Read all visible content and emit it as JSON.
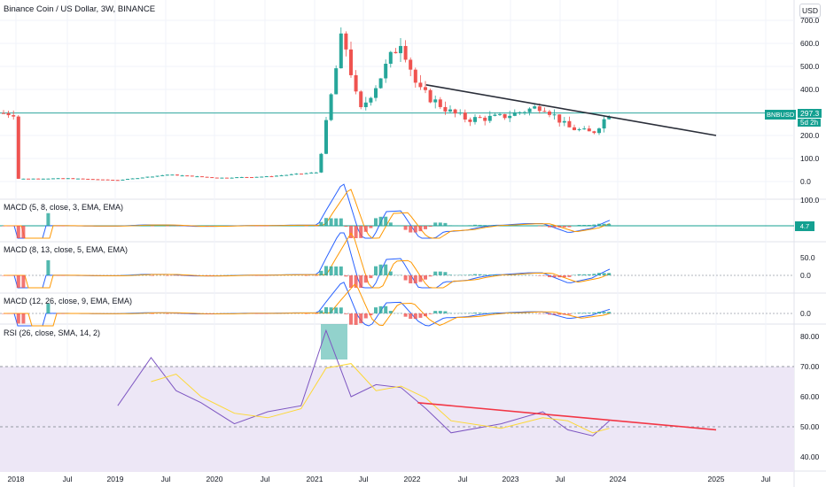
{
  "header": {
    "title": "Binance Coin / US Dollar, 3W, BINANCE",
    "currency": "USD"
  },
  "price_tag": {
    "symbol": "BNBUSD",
    "price": "297.3",
    "countdown": "5d 2h"
  },
  "macd_tag": {
    "value": "4.7"
  },
  "colors": {
    "up": "#26a69a",
    "down": "#ef5350",
    "trendline": "#2a2e39",
    "rsi_trend": "#f23645",
    "macd": "#2962ff",
    "signal": "#ff9800",
    "rsi": "#7e57c2",
    "rsi_ma": "#fdd835",
    "rsi_band": "#ede7f6"
  },
  "time_axis": [
    "2018",
    "Jul",
    "2019",
    "Jul",
    "2020",
    "Jul",
    "2021",
    "Jul",
    "2022",
    "Jul",
    "2023",
    "Jul",
    "2024",
    "2025",
    "Jul"
  ],
  "panes": [
    {
      "title": "",
      "ticks": [
        "700.0",
        "600.0",
        "500.0",
        "400.0",
        "300.0",
        "200.0",
        "100.0",
        "0.0"
      ]
    },
    {
      "title": "MACD (5, 8, close, 3, EMA, EMA)",
      "ticks": [
        "100.0"
      ]
    },
    {
      "title": "MACD (8, 13, close, 5, EMA, EMA)",
      "ticks": [
        "50.0",
        "0.0"
      ]
    },
    {
      "title": "MACD (12, 26, close, 9, EMA, EMA)",
      "ticks": [
        "0.0"
      ]
    },
    {
      "title": "RSI (26, close, SMA, 14, 2)",
      "ticks": [
        "80.00",
        "70.00",
        "60.00",
        "50.00",
        "40.00"
      ]
    }
  ],
  "chart_data": [
    {
      "type": "candlestick",
      "title": "Binance Coin / US Dollar, 3W, BINANCE",
      "ylim": [
        0,
        700
      ],
      "close_approx": [
        [
          "2018-01",
          12
        ],
        [
          "2018-07",
          14
        ],
        [
          "2019-01",
          6
        ],
        [
          "2019-07",
          30
        ],
        [
          "2020-01",
          16
        ],
        [
          "2020-07",
          22
        ],
        [
          "2021-01",
          40
        ],
        [
          "2021-02",
          250
        ],
        [
          "2021-04",
          650
        ],
        [
          "2021-06",
          300
        ],
        [
          "2021-08",
          420
        ],
        [
          "2021-11",
          620
        ],
        [
          "2022-01",
          400
        ],
        [
          "2022-05",
          300
        ],
        [
          "2022-07",
          270
        ],
        [
          "2022-11",
          280
        ],
        [
          "2023-04",
          330
        ],
        [
          "2023-07",
          235
        ],
        [
          "2023-10",
          210
        ],
        [
          "2023-12",
          297.3
        ]
      ],
      "trendline": {
        "start": [
          "2022-02",
          420
        ],
        "end": [
          "2025-01",
          200
        ]
      },
      "last_price": 297.3
    },
    {
      "type": "line",
      "title": "MACD (5, 8, close, 3, EMA, EMA)",
      "last_value": 4.7
    },
    {
      "type": "line",
      "title": "MACD (8, 13, close, 5, EMA, EMA)",
      "ylim_ticks": [
        0,
        50
      ]
    },
    {
      "type": "line",
      "title": "MACD (12, 26, close, 9, EMA, EMA)",
      "ylim_ticks": [
        0
      ]
    },
    {
      "type": "line",
      "title": "RSI (26, close, SMA, 14, 2)",
      "ylim": [
        35,
        85
      ],
      "bands": [
        50,
        70
      ],
      "rsi_approx": [
        [
          "2019-01",
          57
        ],
        [
          "2019-05",
          73
        ],
        [
          "2019-08",
          62
        ],
        [
          "2019-11",
          58
        ],
        [
          "2020-03",
          51
        ],
        [
          "2020-07",
          55
        ],
        [
          "2020-11",
          57
        ],
        [
          "2021-02",
          82
        ],
        [
          "2021-05",
          60
        ],
        [
          "2021-08",
          64
        ],
        [
          "2021-11",
          63
        ],
        [
          "2022-02",
          56
        ],
        [
          "2022-05",
          48
        ],
        [
          "2022-11",
          51
        ],
        [
          "2023-04",
          55
        ],
        [
          "2023-07",
          49
        ],
        [
          "2023-10",
          47
        ],
        [
          "2023-12",
          52
        ]
      ],
      "trendline": {
        "start": [
          "2022-01",
          58
        ],
        "end": [
          "2025-01",
          49
        ]
      }
    }
  ]
}
